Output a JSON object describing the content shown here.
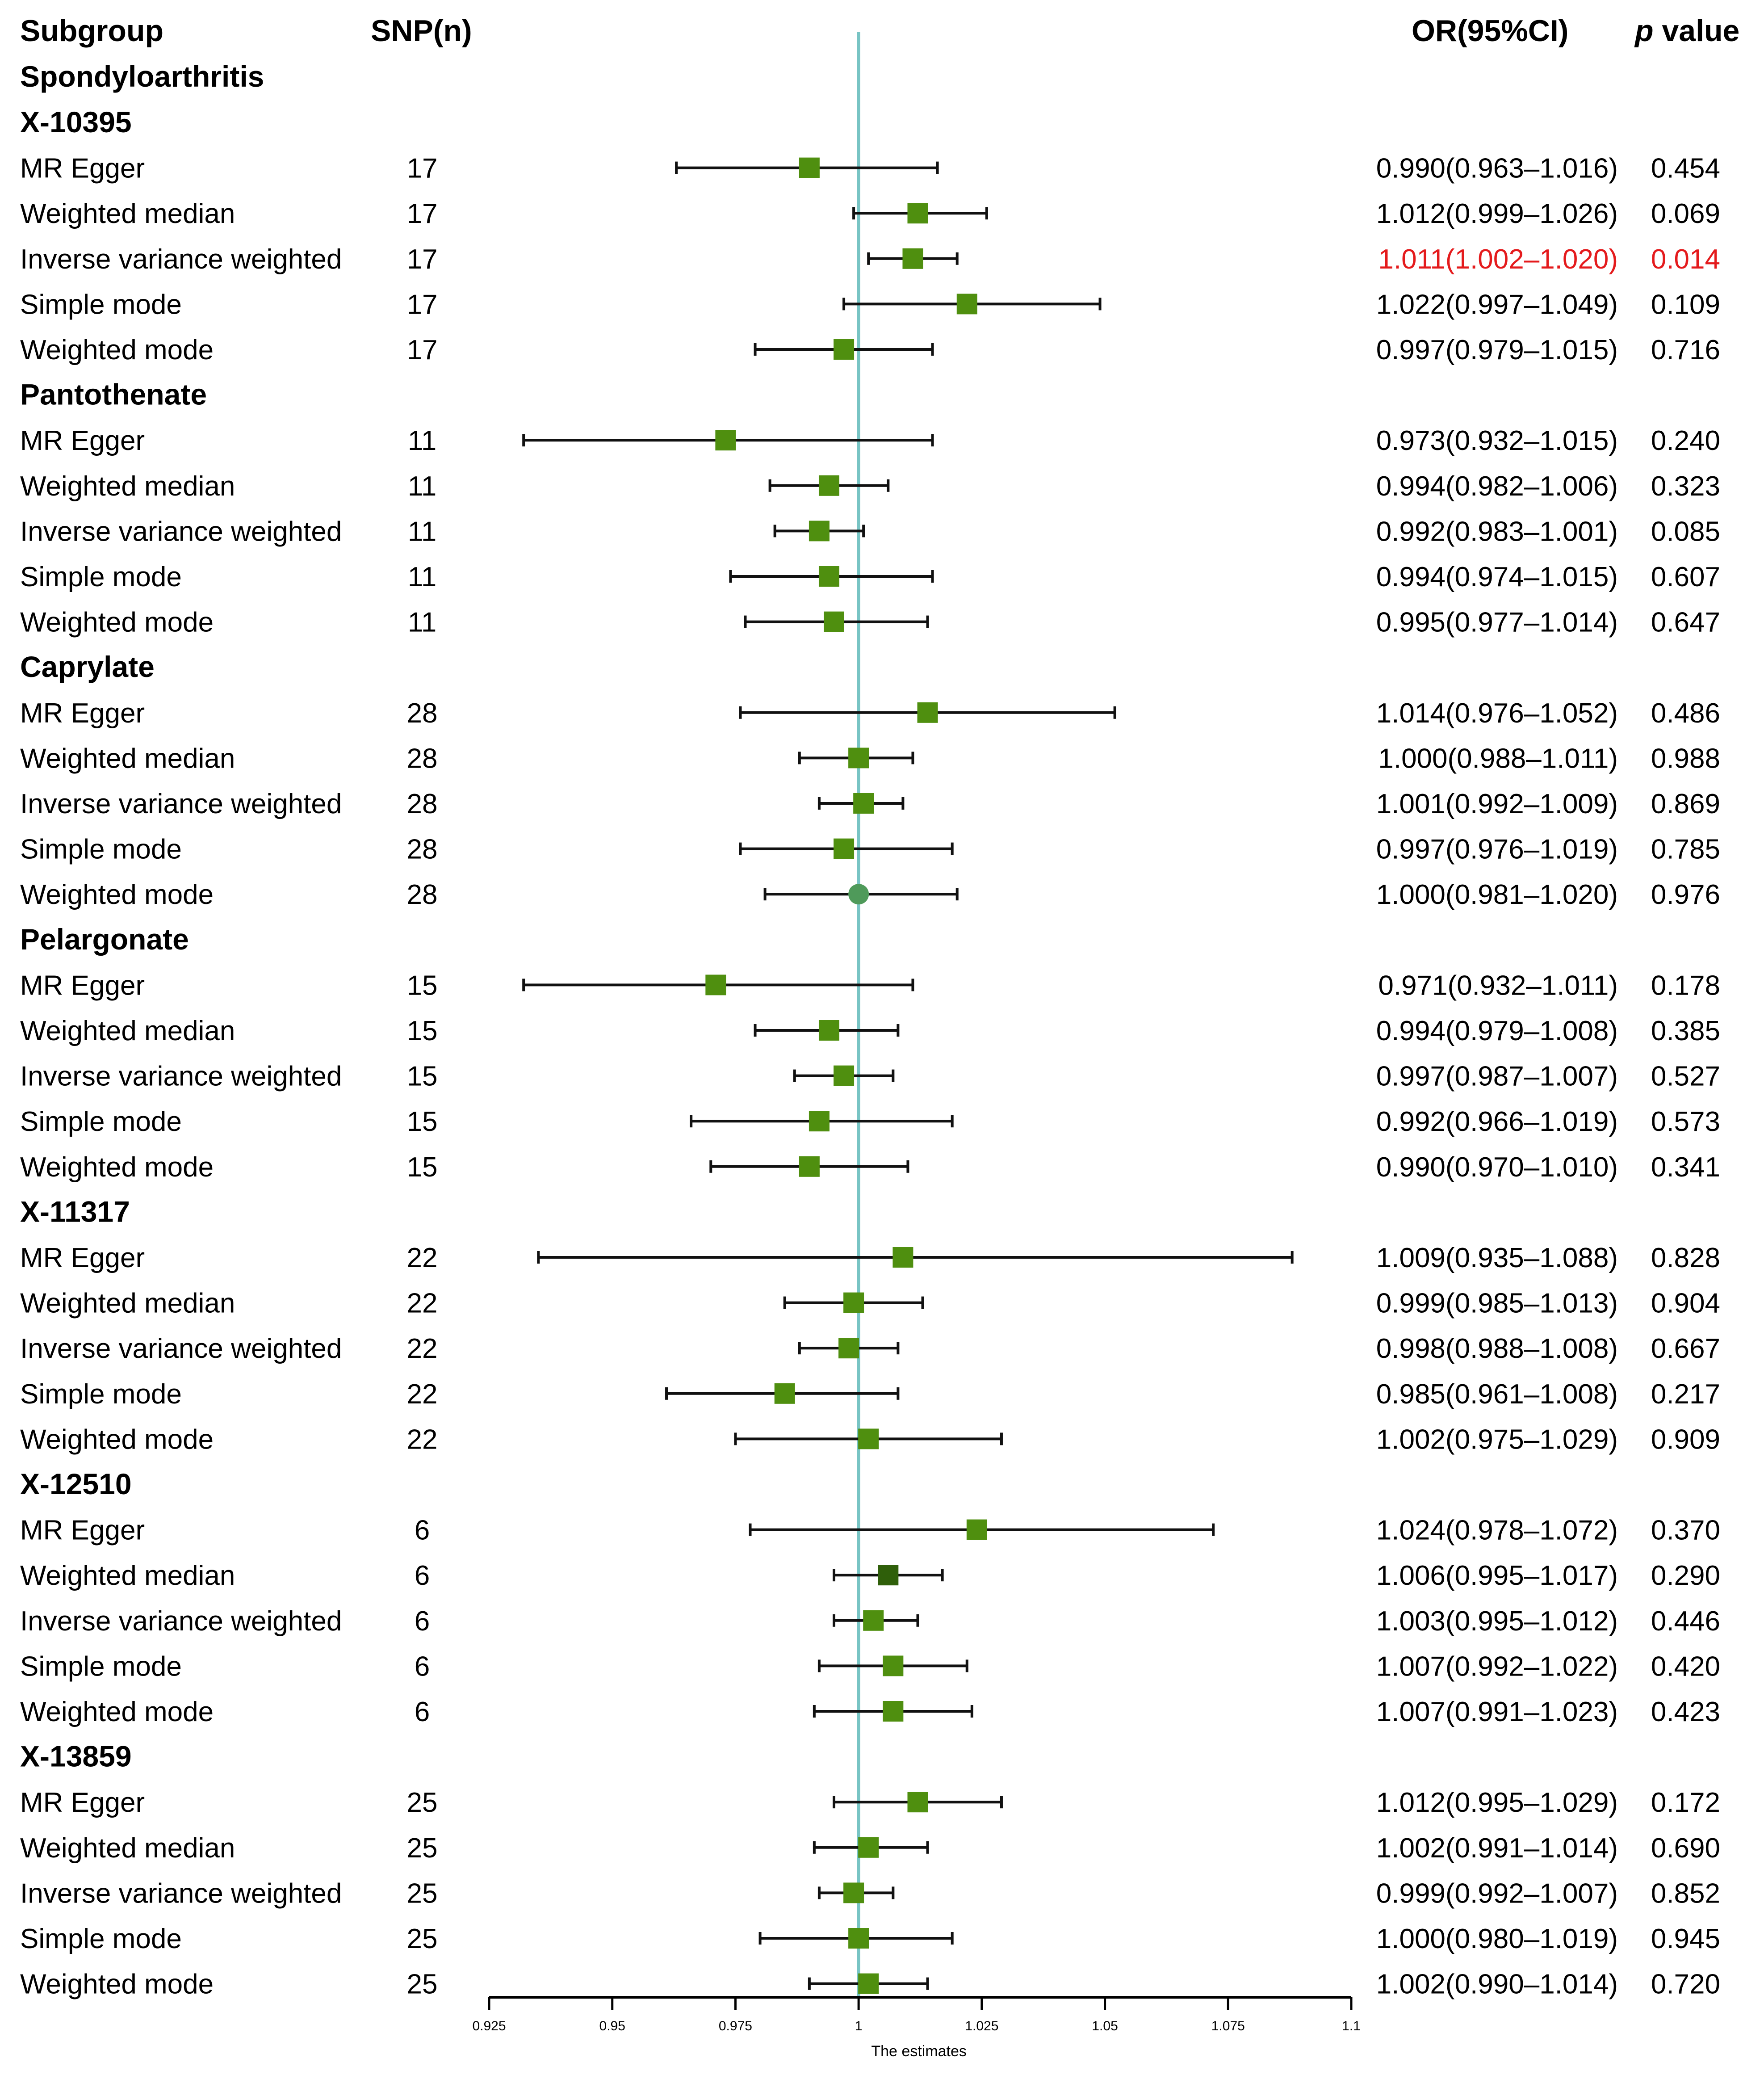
{
  "header": {
    "subgroup": "Subgroup",
    "snp": "SNP(n)",
    "or": "OR(95%CI)",
    "p_italic": "p",
    "p_rest": " value"
  },
  "outcome": "Spondyloarthritis",
  "colors": {
    "marker": "#4f8f0f",
    "marker_dark": "#2f5f0a",
    "ref_line": "#78c4c4",
    "significant": "#e41a1c",
    "text": "#000000"
  },
  "chart_data": {
    "type": "forest",
    "xlabel": "The estimates",
    "xlim": [
      0.925,
      1.1
    ],
    "reference": 1,
    "ticks": [
      "0.925",
      "0.95",
      "0.975",
      "1",
      "1.025",
      "1.05",
      "1.075",
      "1.1"
    ],
    "groups": [
      {
        "name": "X-10395",
        "rows": [
          {
            "method": "MR Egger",
            "snp": "17",
            "or": 0.99,
            "lo": 0.963,
            "hi": 1.016,
            "or_text": "0.990(0.963–1.016)",
            "p": "0.454"
          },
          {
            "method": "Weighted median",
            "snp": "17",
            "or": 1.012,
            "lo": 0.999,
            "hi": 1.026,
            "or_text": "1.012(0.999–1.026)",
            "p": "0.069"
          },
          {
            "method": "Inverse variance weighted",
            "snp": "17",
            "or": 1.011,
            "lo": 1.002,
            "hi": 1.02,
            "or_text": "1.011(1.002–1.020)",
            "p": "0.014",
            "highlight": true
          },
          {
            "method": "Simple mode",
            "snp": "17",
            "or": 1.022,
            "lo": 0.997,
            "hi": 1.049,
            "or_text": "1.022(0.997–1.049)",
            "p": "0.109"
          },
          {
            "method": "Weighted mode",
            "snp": "17",
            "or": 0.997,
            "lo": 0.979,
            "hi": 1.015,
            "or_text": "0.997(0.979–1.015)",
            "p": "0.716"
          }
        ]
      },
      {
        "name": "Pantothenate",
        "rows": [
          {
            "method": "MR Egger",
            "snp": "11",
            "or": 0.973,
            "lo": 0.932,
            "hi": 1.015,
            "or_text": "0.973(0.932–1.015)",
            "p": "0.240"
          },
          {
            "method": "Weighted median",
            "snp": "11",
            "or": 0.994,
            "lo": 0.982,
            "hi": 1.006,
            "or_text": "0.994(0.982–1.006)",
            "p": "0.323"
          },
          {
            "method": "Inverse variance weighted",
            "snp": "11",
            "or": 0.992,
            "lo": 0.983,
            "hi": 1.001,
            "or_text": "0.992(0.983–1.001)",
            "p": "0.085"
          },
          {
            "method": "Simple mode",
            "snp": "11",
            "or": 0.994,
            "lo": 0.974,
            "hi": 1.015,
            "or_text": "0.994(0.974–1.015)",
            "p": "0.607"
          },
          {
            "method": "Weighted mode",
            "snp": "11",
            "or": 0.995,
            "lo": 0.977,
            "hi": 1.014,
            "or_text": "0.995(0.977–1.014)",
            "p": "0.647"
          }
        ]
      },
      {
        "name": "Caprylate",
        "rows": [
          {
            "method": "MR Egger",
            "snp": "28",
            "or": 1.014,
            "lo": 0.976,
            "hi": 1.052,
            "or_text": "1.014(0.976–1.052)",
            "p": "0.486"
          },
          {
            "method": "Weighted median",
            "snp": "28",
            "or": 1.0,
            "lo": 0.988,
            "hi": 1.011,
            "or_text": "1.000(0.988–1.011)",
            "p": "0.988"
          },
          {
            "method": "Inverse variance weighted",
            "snp": "28",
            "or": 1.001,
            "lo": 0.992,
            "hi": 1.009,
            "or_text": "1.001(0.992–1.009)",
            "p": "0.869"
          },
          {
            "method": "Simple mode",
            "snp": "28",
            "or": 0.997,
            "lo": 0.976,
            "hi": 1.019,
            "or_text": "0.997(0.976–1.019)",
            "p": "0.785"
          },
          {
            "method": "Weighted mode",
            "snp": "28",
            "or": 1.0,
            "lo": 0.981,
            "hi": 1.02,
            "or_text": "1.000(0.981–1.020)",
            "p": "0.976",
            "marker": "circle"
          }
        ]
      },
      {
        "name": "Pelargonate",
        "rows": [
          {
            "method": "MR Egger",
            "snp": "15",
            "or": 0.971,
            "lo": 0.932,
            "hi": 1.011,
            "or_text": "0.971(0.932–1.011)",
            "p": "0.178"
          },
          {
            "method": "Weighted median",
            "snp": "15",
            "or": 0.994,
            "lo": 0.979,
            "hi": 1.008,
            "or_text": "0.994(0.979–1.008)",
            "p": "0.385"
          },
          {
            "method": "Inverse variance weighted",
            "snp": "15",
            "or": 0.997,
            "lo": 0.987,
            "hi": 1.007,
            "or_text": "0.997(0.987–1.007)",
            "p": "0.527"
          },
          {
            "method": "Simple mode",
            "snp": "15",
            "or": 0.992,
            "lo": 0.966,
            "hi": 1.019,
            "or_text": "0.992(0.966–1.019)",
            "p": "0.573"
          },
          {
            "method": "Weighted mode",
            "snp": "15",
            "or": 0.99,
            "lo": 0.97,
            "hi": 1.01,
            "or_text": "0.990(0.970–1.010)",
            "p": "0.341"
          }
        ]
      },
      {
        "name": "X-11317",
        "rows": [
          {
            "method": "MR Egger",
            "snp": "22",
            "or": 1.009,
            "lo": 0.935,
            "hi": 1.088,
            "or_text": "1.009(0.935–1.088)",
            "p": "0.828"
          },
          {
            "method": "Weighted median",
            "snp": "22",
            "or": 0.999,
            "lo": 0.985,
            "hi": 1.013,
            "or_text": "0.999(0.985–1.013)",
            "p": "0.904"
          },
          {
            "method": "Inverse variance weighted",
            "snp": "22",
            "or": 0.998,
            "lo": 0.988,
            "hi": 1.008,
            "or_text": "0.998(0.988–1.008)",
            "p": "0.667"
          },
          {
            "method": "Simple mode",
            "snp": "22",
            "or": 0.985,
            "lo": 0.961,
            "hi": 1.008,
            "or_text": "0.985(0.961–1.008)",
            "p": "0.217"
          },
          {
            "method": "Weighted mode",
            "snp": "22",
            "or": 1.002,
            "lo": 0.975,
            "hi": 1.029,
            "or_text": "1.002(0.975–1.029)",
            "p": "0.909"
          }
        ]
      },
      {
        "name": "X-12510",
        "rows": [
          {
            "method": "MR Egger",
            "snp": "6",
            "or": 1.024,
            "lo": 0.978,
            "hi": 1.072,
            "or_text": "1.024(0.978–1.072)",
            "p": "0.370"
          },
          {
            "method": "Weighted median",
            "snp": "6",
            "or": 1.006,
            "lo": 0.995,
            "hi": 1.017,
            "or_text": "1.006(0.995–1.017)",
            "p": "0.290",
            "marker": "dark"
          },
          {
            "method": "Inverse variance weighted",
            "snp": "6",
            "or": 1.003,
            "lo": 0.995,
            "hi": 1.012,
            "or_text": "1.003(0.995–1.012)",
            "p": "0.446"
          },
          {
            "method": "Simple mode",
            "snp": "6",
            "or": 1.007,
            "lo": 0.992,
            "hi": 1.022,
            "or_text": "1.007(0.992–1.022)",
            "p": "0.420"
          },
          {
            "method": "Weighted mode",
            "snp": "6",
            "or": 1.007,
            "lo": 0.991,
            "hi": 1.023,
            "or_text": "1.007(0.991–1.023)",
            "p": "0.423"
          }
        ]
      },
      {
        "name": "X-13859",
        "rows": [
          {
            "method": "MR Egger",
            "snp": "25",
            "or": 1.012,
            "lo": 0.995,
            "hi": 1.029,
            "or_text": "1.012(0.995–1.029)",
            "p": "0.172"
          },
          {
            "method": "Weighted median",
            "snp": "25",
            "or": 1.002,
            "lo": 0.991,
            "hi": 1.014,
            "or_text": "1.002(0.991–1.014)",
            "p": "0.690"
          },
          {
            "method": "Inverse variance weighted",
            "snp": "25",
            "or": 0.999,
            "lo": 0.992,
            "hi": 1.007,
            "or_text": "0.999(0.992–1.007)",
            "p": "0.852"
          },
          {
            "method": "Simple mode",
            "snp": "25",
            "or": 1.0,
            "lo": 0.98,
            "hi": 1.019,
            "or_text": "1.000(0.980–1.019)",
            "p": "0.945"
          },
          {
            "method": "Weighted mode",
            "snp": "25",
            "or": 1.002,
            "lo": 0.99,
            "hi": 1.014,
            "or_text": "1.002(0.990–1.014)",
            "p": "0.720"
          }
        ]
      }
    ]
  }
}
